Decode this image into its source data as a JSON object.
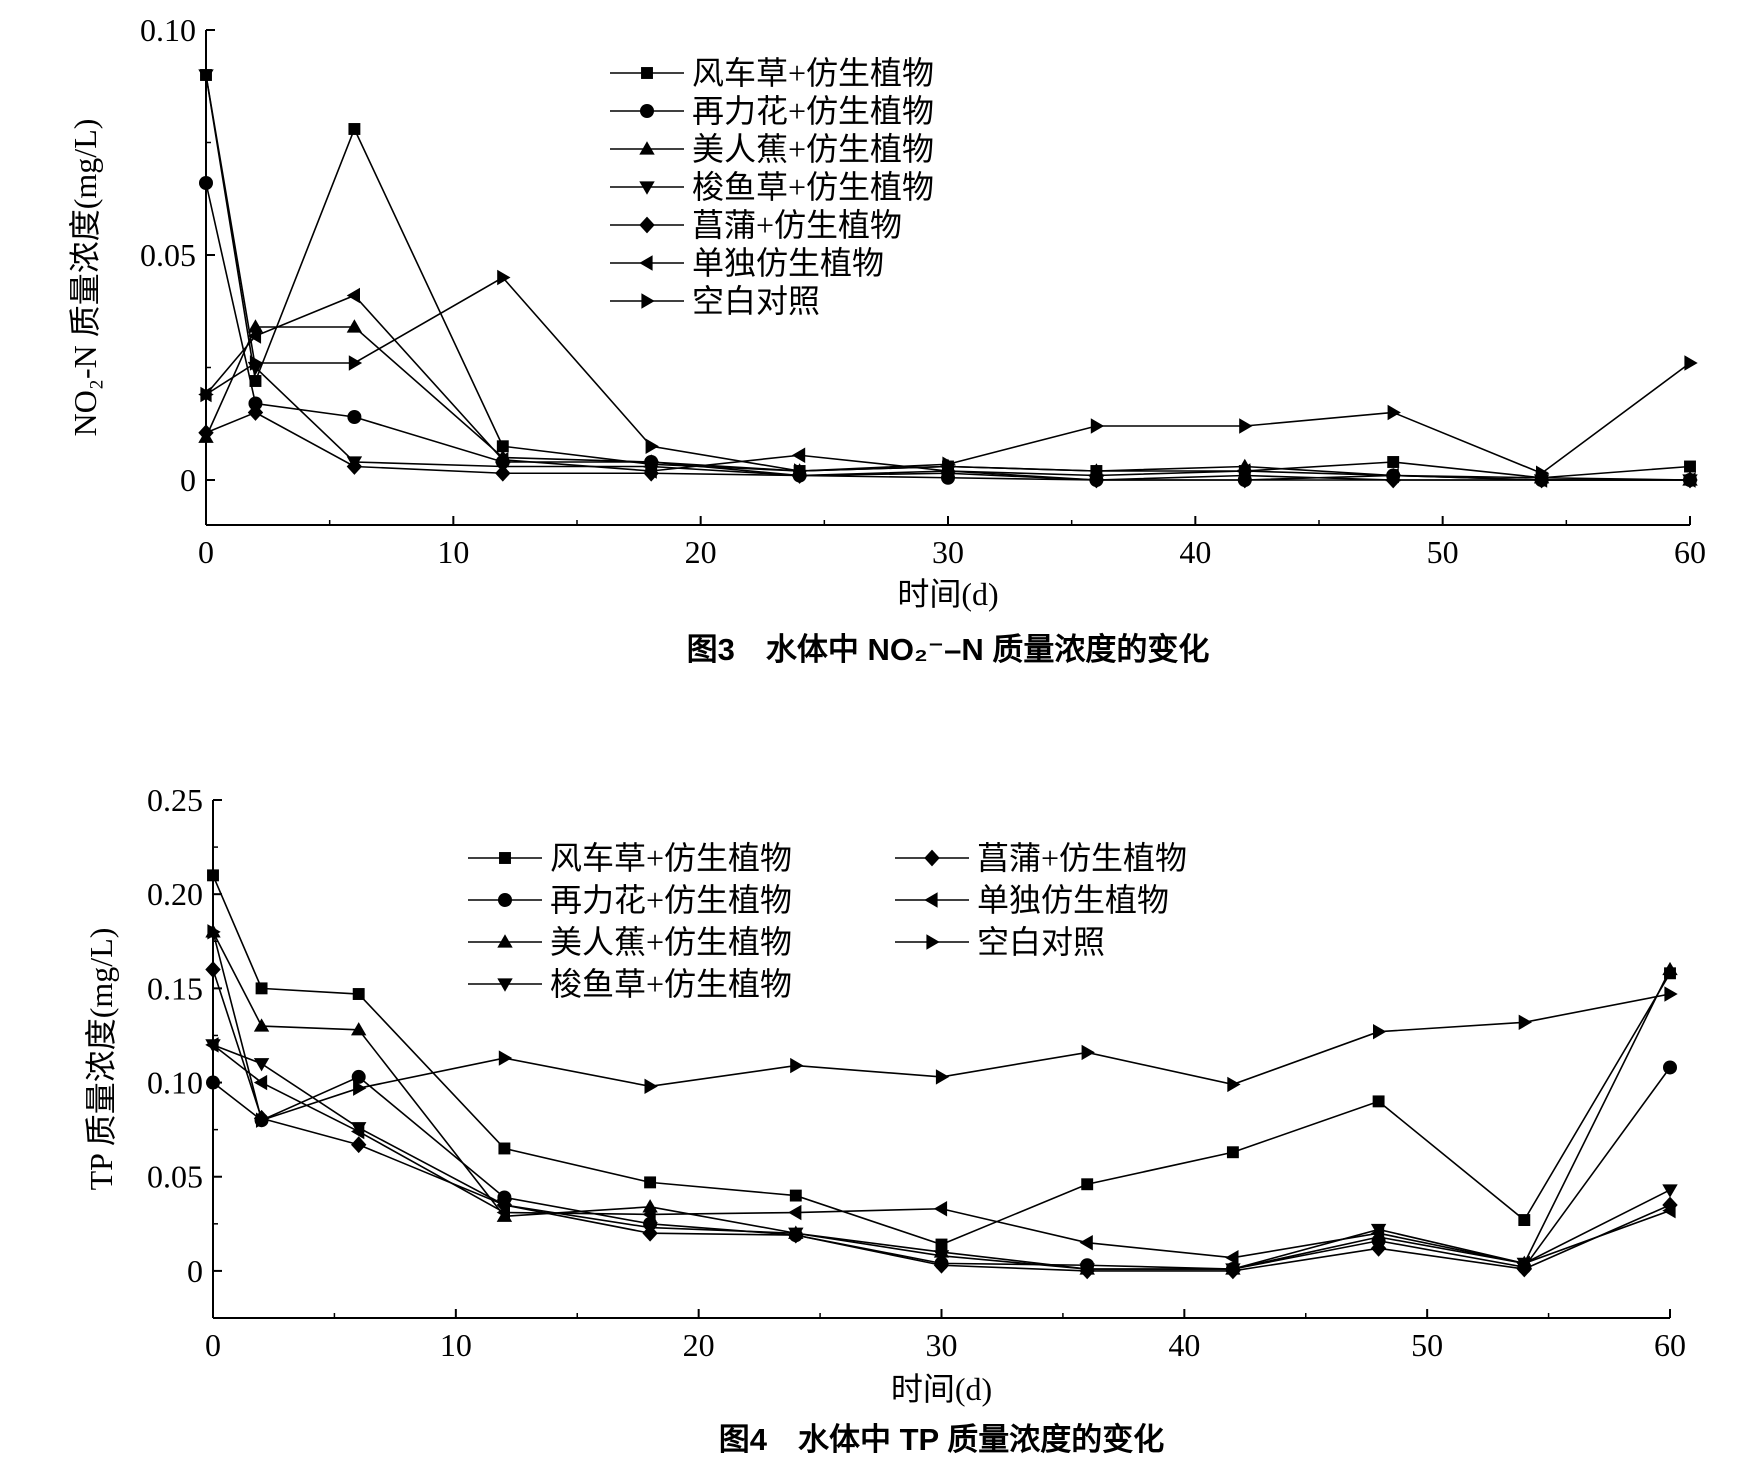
{
  "chart_data": [
    {
      "type": "line",
      "title": "图3　水体中 NO₂⁻–N 质量浓度的变化",
      "xlabel": "时间(d)",
      "ylabel": "NO₂-N 质量浓度(mg/L)",
      "xlim": [
        0,
        60
      ],
      "ylim": [
        -0.01,
        0.1
      ],
      "x_ticks": [
        0,
        10,
        20,
        30,
        40,
        50,
        60
      ],
      "x_tick_labels": [
        "0",
        "10",
        "20",
        "30",
        "40",
        "50",
        "60"
      ],
      "y_ticks": [
        0,
        0.05,
        0.1
      ],
      "y_tick_labels": [
        "0",
        "0.05",
        "0.10"
      ],
      "grid": false,
      "legend_position": "top-center",
      "x": [
        0,
        2,
        6,
        12,
        18,
        24,
        30,
        36,
        42,
        48,
        54,
        60
      ],
      "series": [
        {
          "name": "风车草+仿生植物",
          "marker": "square",
          "values": [
            0.09,
            0.022,
            0.078,
            0.0075,
            0.0035,
            0.002,
            0.003,
            0.002,
            0.002,
            0.004,
            0.0005,
            0.003
          ]
        },
        {
          "name": "再力花+仿生植物",
          "marker": "circle",
          "values": [
            0.066,
            0.017,
            0.014,
            0.004,
            0.004,
            0.001,
            0.0005,
            0,
            0,
            0.001,
            0,
            0
          ]
        },
        {
          "name": "美人蕉+仿生植物",
          "marker": "triangle-up",
          "values": [
            0.0095,
            0.034,
            0.034,
            0.005,
            0.004,
            0.002,
            0.003,
            0.002,
            0.003,
            0.001,
            0.0005,
            0
          ]
        },
        {
          "name": "梭鱼草+仿生植物",
          "marker": "triangle-down",
          "values": [
            0.09,
            0.025,
            0.004,
            0.003,
            0.003,
            0.001,
            0.002,
            0,
            0.001,
            0,
            0,
            0
          ]
        },
        {
          "name": "菖蒲+仿生植物",
          "marker": "diamond",
          "values": [
            0.0105,
            0.015,
            0.003,
            0.0015,
            0.0015,
            0.001,
            0.0015,
            0,
            0,
            0,
            0,
            0
          ]
        },
        {
          "name": "单独仿生植物",
          "marker": "triangle-left",
          "values": [
            0.019,
            0.032,
            0.041,
            0.0045,
            0.002,
            0.0055,
            0.002,
            0.001,
            0.002,
            0.001,
            0,
            0
          ]
        },
        {
          "name": "空白对照",
          "marker": "triangle-right",
          "values": [
            0.019,
            0.026,
            0.026,
            0.045,
            0.0075,
            0.002,
            0.0035,
            0.012,
            0.012,
            0.015,
            0.0015,
            0.026
          ]
        }
      ]
    },
    {
      "type": "line",
      "title": "图4　水体中 TP 质量浓度的变化",
      "xlabel": "时间(d)",
      "ylabel": "TP 质量浓度(mg/L)",
      "xlim": [
        0,
        60
      ],
      "ylim": [
        -0.025,
        0.25
      ],
      "x_ticks": [
        0,
        10,
        20,
        30,
        40,
        50,
        60
      ],
      "x_tick_labels": [
        "0",
        "10",
        "20",
        "30",
        "40",
        "50",
        "60"
      ],
      "y_ticks": [
        0,
        0.05,
        0.1,
        0.15,
        0.2,
        0.25
      ],
      "y_tick_labels": [
        "0",
        "0.05",
        "0.10",
        "0.15",
        "0.20",
        "0.25"
      ],
      "grid": false,
      "legend_position": "top-left",
      "x": [
        0,
        2,
        6,
        12,
        18,
        24,
        30,
        36,
        42,
        48,
        54,
        60
      ],
      "series": [
        {
          "name": "风车草+仿生植物",
          "marker": "square",
          "values": [
            0.21,
            0.15,
            0.147,
            0.065,
            0.047,
            0.04,
            0.014,
            0.046,
            0.063,
            0.09,
            0.027,
            0.158
          ]
        },
        {
          "name": "再力花+仿生植物",
          "marker": "circle",
          "values": [
            0.1,
            0.08,
            0.103,
            0.039,
            0.025,
            0.019,
            0.004,
            0.003,
            0.001,
            0.016,
            0.002,
            0.108
          ]
        },
        {
          "name": "美人蕉+仿生植物",
          "marker": "triangle-up",
          "values": [
            0.18,
            0.13,
            0.128,
            0.029,
            0.034,
            0.02,
            0.01,
            0.001,
            0.001,
            0.018,
            0.004,
            0.16
          ]
        },
        {
          "name": "梭鱼草+仿生植物",
          "marker": "triangle-down",
          "values": [
            0.12,
            0.11,
            0.076,
            0.035,
            0.023,
            0.02,
            0.008,
            0.001,
            0.001,
            0.022,
            0.004,
            0.043
          ]
        },
        {
          "name": "菖蒲+仿生植物",
          "marker": "diamond",
          "values": [
            0.16,
            0.081,
            0.067,
            0.035,
            0.02,
            0.019,
            0.003,
            0,
            0,
            0.012,
            0.001,
            0.035
          ]
        },
        {
          "name": "单独仿生植物",
          "marker": "triangle-left",
          "values": [
            0.12,
            0.1,
            0.074,
            0.031,
            0.03,
            0.031,
            0.033,
            0.015,
            0.007,
            0.02,
            0.004,
            0.032
          ]
        },
        {
          "name": "空白对照",
          "marker": "triangle-right",
          "values": [
            0.18,
            0.08,
            0.097,
            0.113,
            0.098,
            0.109,
            0.103,
            0.116,
            0.099,
            0.127,
            0.132,
            0.147
          ]
        }
      ]
    }
  ]
}
